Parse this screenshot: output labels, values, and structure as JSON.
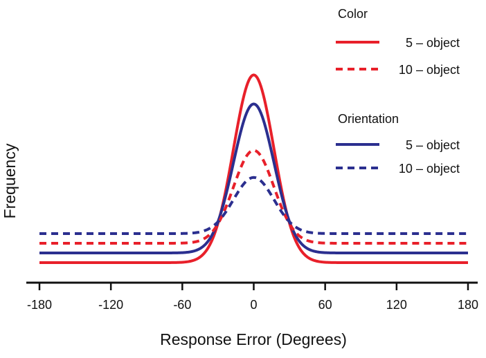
{
  "chart_data": {
    "type": "line",
    "title": "",
    "xlabel": "Response Error (Degrees)",
    "ylabel": "Frequency",
    "xlim": [
      -180,
      180
    ],
    "x_ticks": [
      -180,
      -120,
      -60,
      0,
      60,
      120,
      180
    ],
    "x_tick_labels": [
      "-180",
      "-120",
      "-60",
      "0",
      "60",
      "120",
      "180"
    ],
    "y_ticks_shown": false,
    "legend": {
      "placement": "top-right",
      "groups": [
        {
          "title": "Color",
          "entries": [
            {
              "label": "5 – object",
              "series": "color-5"
            },
            {
              "label": "10 – object",
              "series": "color-10"
            }
          ]
        },
        {
          "title": "Orientation",
          "entries": [
            {
              "label": "5 – object",
              "series": "orientation-5"
            },
            {
              "label": "10 – object",
              "series": "orientation-10"
            }
          ]
        }
      ]
    },
    "colors": {
      "Color": "#e8202a",
      "Orientation": "#2b2f8f"
    },
    "series": [
      {
        "key": "color-5",
        "group": "Color",
        "name": "5 – object",
        "style": "solid",
        "baseline": 0.5,
        "peak": 10.2,
        "sigma": 17
      },
      {
        "key": "orientation-5",
        "group": "Orientation",
        "name": "5 – object",
        "style": "solid",
        "baseline": 1.0,
        "peak": 8.7,
        "sigma": 17
      },
      {
        "key": "color-10",
        "group": "Color",
        "name": "10 – object",
        "style": "dashed",
        "baseline": 1.5,
        "peak": 6.3,
        "sigma": 17
      },
      {
        "key": "orientation-10",
        "group": "Orientation",
        "name": "10 – object",
        "style": "dashed",
        "baseline": 2.0,
        "peak": 4.9,
        "sigma": 17
      }
    ]
  }
}
